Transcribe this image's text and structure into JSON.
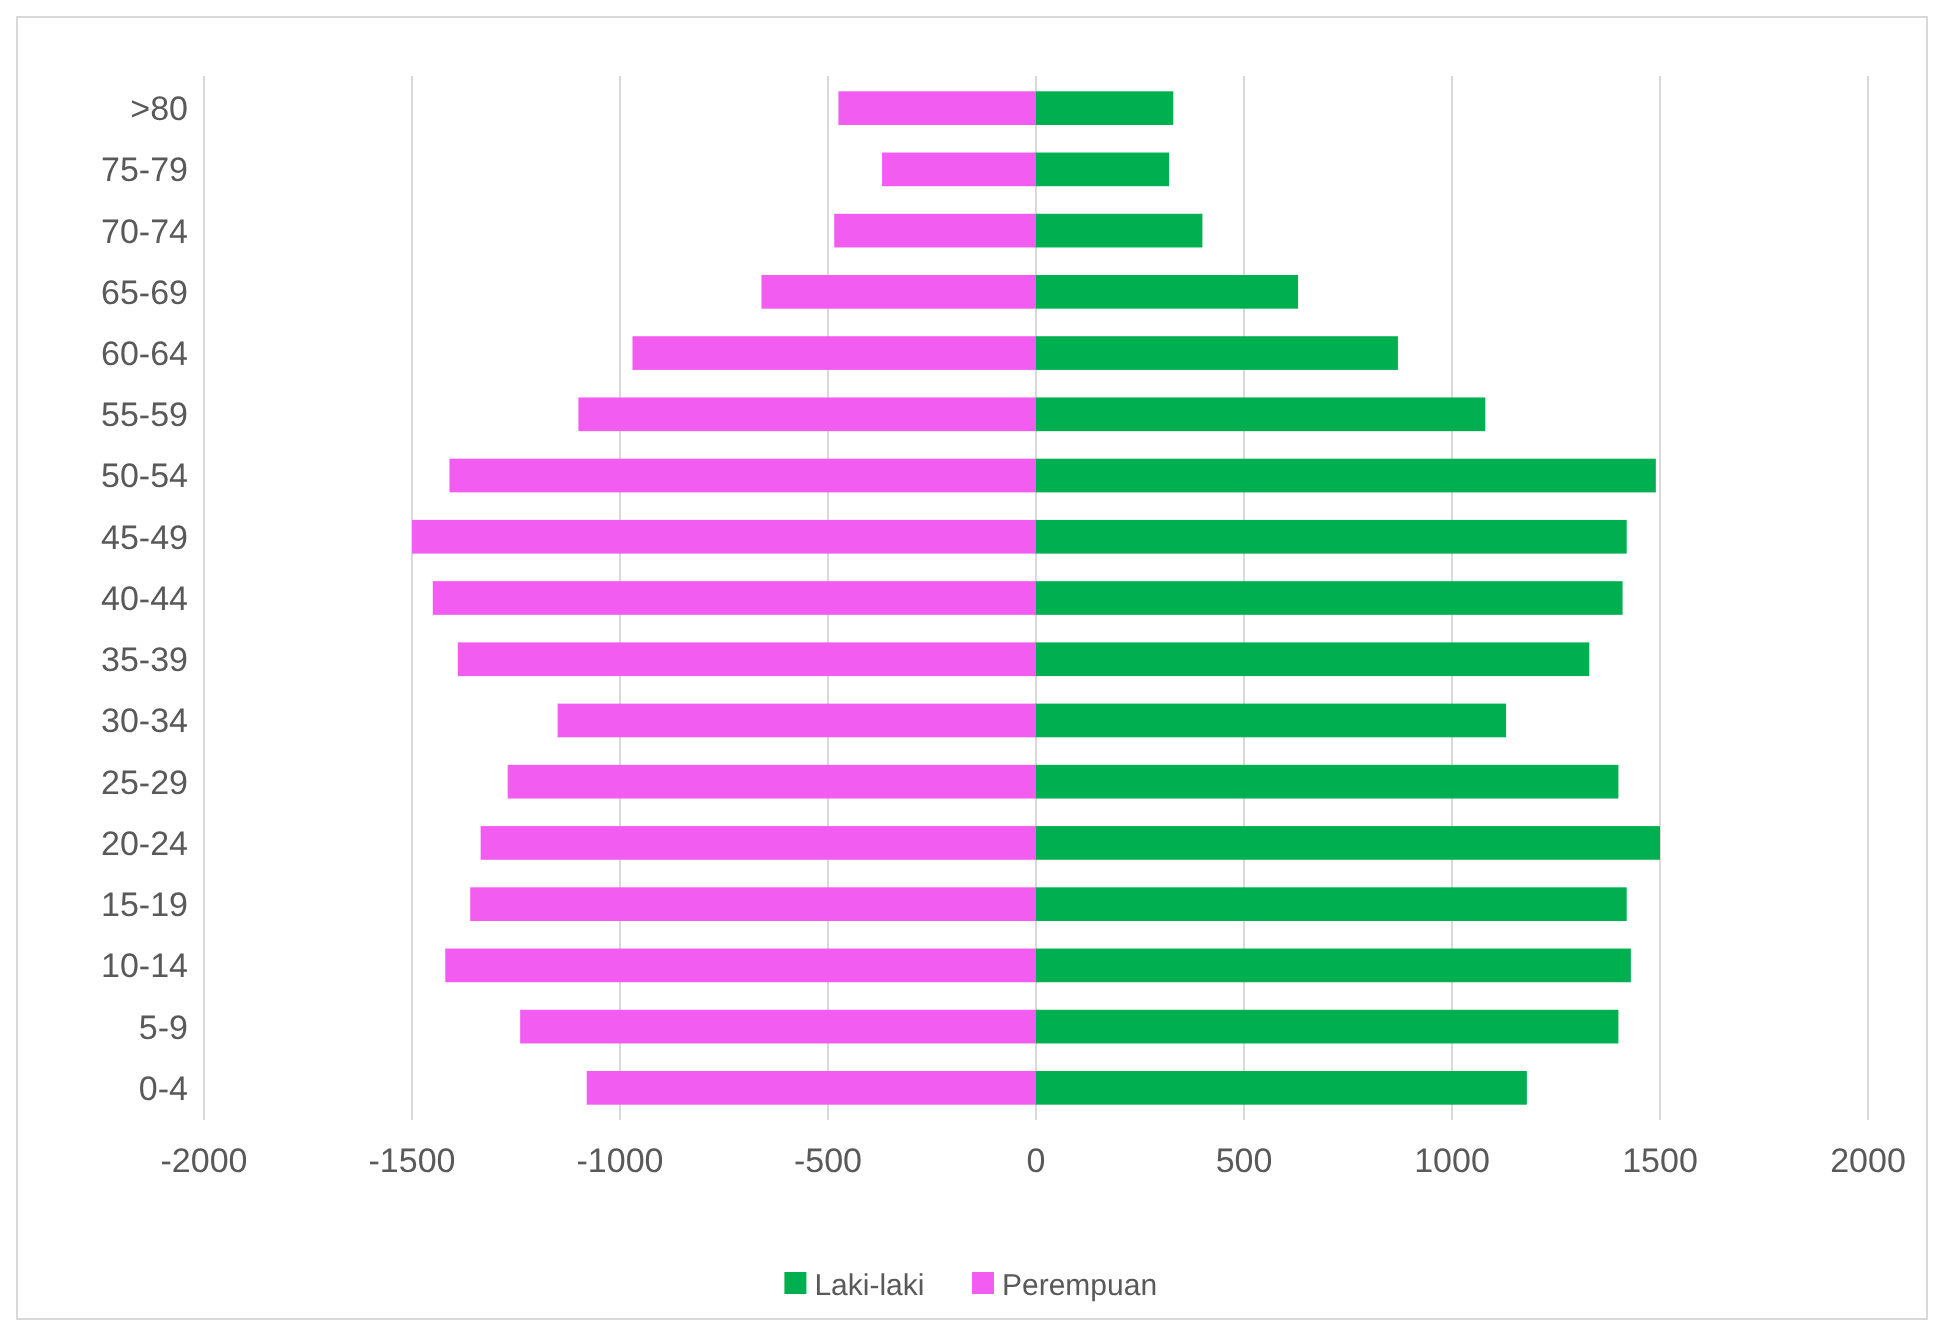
{
  "chart_data": {
    "type": "bar",
    "orientation": "horizontal",
    "categories": [
      ">80",
      "75-79",
      "70-74",
      "65-69",
      "60-64",
      "55-59",
      "50-54",
      "45-49",
      "40-44",
      "35-39",
      "30-34",
      "25-29",
      "20-24",
      "15-19",
      "10-14",
      "5-9",
      "0-4"
    ],
    "series": [
      {
        "name": "Laki-laki",
        "color": "#00b050",
        "values": [
          330,
          320,
          400,
          630,
          870,
          1080,
          1490,
          1420,
          1410,
          1330,
          1130,
          1400,
          1500,
          1420,
          1430,
          1400,
          1180
        ]
      },
      {
        "name": "Perempuan",
        "color": "#f25cf0",
        "values": [
          -475,
          -370,
          -485,
          -660,
          -970,
          -1100,
          -1410,
          -1500,
          -1450,
          -1390,
          -1150,
          -1270,
          -1335,
          -1360,
          -1420,
          -1240,
          -1080
        ]
      }
    ],
    "xlim": [
      -2000,
      2000
    ],
    "xticks": [
      -2000,
      -1500,
      -1000,
      -500,
      0,
      500,
      1000,
      1500,
      2000
    ],
    "grid": "x",
    "legend": "bottom",
    "stacked": true
  }
}
